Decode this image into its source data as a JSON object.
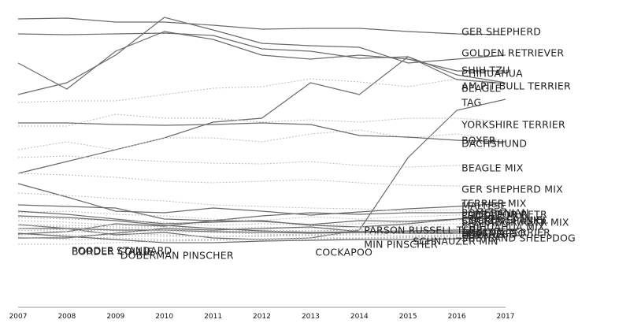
{
  "chart_data": {
    "type": "line",
    "title": "",
    "xlabel": "",
    "ylabel": "",
    "x": [
      2007,
      2008,
      2009,
      2010,
      2011,
      2012,
      2013,
      2014,
      2015,
      2016,
      2017
    ],
    "ylim": [
      0,
      380
    ],
    "grid": false,
    "legend": "none",
    "colors": {
      "solid": "#6a6a6a",
      "dotted": "#bdbdbd",
      "axis": "#9a9a9a",
      "text": "#222222"
    },
    "series": [
      {
        "name": "GER SHEPHERD",
        "style": "solid",
        "values": [
          366,
          367,
          362,
          362,
          358,
          353,
          354,
          354,
          350,
          347,
          346
        ]
      },
      {
        "name": "GOLDEN RETRIEVER",
        "style": "solid",
        "values": [
          270,
          285,
          320,
          368,
          352,
          335,
          332,
          330,
          310,
          315,
          320
        ]
      },
      {
        "name": "SHIH TZU",
        "style": "solid",
        "values": [
          347,
          346,
          347,
          348,
          345,
          328,
          325,
          316,
          318,
          289,
          284
        ]
      },
      {
        "name": "CHIHUAHUA",
        "style": "solid",
        "values": [
          310,
          277,
          325,
          350,
          340,
          320,
          315,
          320,
          315,
          300,
          300
        ]
      },
      {
        "name": "AM PIT BULL TERRIER",
        "style": "solid",
        "values": [
          170,
          185,
          200,
          215,
          235,
          240,
          285,
          270,
          318,
          295,
          285
        ]
      },
      {
        "name": "BEAGLE",
        "style": "dotted",
        "values": [
          260,
          262,
          262,
          270,
          278,
          280,
          290,
          286,
          280,
          290,
          285
        ]
      },
      {
        "name": "TAG",
        "style": "solid",
        "values": [
          105,
          100,
          92,
          95,
          88,
          86,
          88,
          98,
          190,
          250,
          264
        ]
      },
      {
        "name": "YORKSHIRE TERRIER",
        "style": "dotted",
        "values": [
          230,
          230,
          245,
          240,
          240,
          235,
          238,
          235,
          240,
          240,
          236
        ]
      },
      {
        "name": "BOXER",
        "style": "dotted",
        "values": [
          200,
          210,
          200,
          215,
          215,
          210,
          220,
          225,
          215,
          220,
          212
        ]
      },
      {
        "name": "DACHSHUND",
        "style": "solid",
        "values": [
          234,
          234,
          232,
          231,
          232,
          234,
          232,
          218,
          216,
          212,
          210
        ]
      },
      {
        "name": "BEAGLE MIX",
        "style": "dotted",
        "values": [
          190,
          192,
          188,
          185,
          183,
          182,
          185,
          180,
          178,
          180,
          180
        ]
      },
      {
        "name": "GER SHEPHERD MIX",
        "style": "dotted",
        "values": [
          170,
          168,
          165,
          160,
          158,
          160,
          162,
          158,
          155,
          154,
          152
        ]
      },
      {
        "name": "TERRIER MIX",
        "style": "solid",
        "values": [
          157,
          140,
          122,
          120,
          126,
          122,
          117,
          121,
          125,
          128,
          132
        ]
      },
      {
        "name": "MALTESE",
        "style": "dotted",
        "values": [
          145,
          142,
          138,
          135,
          130,
          128,
          126,
          125,
          122,
          124,
          127
        ]
      },
      {
        "name": "POMERANIAN",
        "style": "solid",
        "values": [
          130,
          128,
          126,
          112,
          110,
          116,
          120,
          118,
          120,
          120,
          123
        ]
      },
      {
        "name": "LABRADOR RETR",
        "style": "dotted",
        "values": [
          120,
          122,
          118,
          116,
          112,
          110,
          115,
          112,
          115,
          117,
          121
        ]
      },
      {
        "name": "POODLE MIX",
        "style": "solid",
        "values": [
          122,
          118,
          112,
          106,
          108,
          110,
          104,
          102,
          106,
          112,
          118
        ]
      },
      {
        "name": "COCKER SPANIEL",
        "style": "dotted",
        "values": [
          114,
          112,
          110,
          108,
          104,
          106,
          104,
          106,
          108,
          110,
          115
        ]
      },
      {
        "name": "SIBERIAN HUSKY",
        "style": "solid",
        "values": [
          93,
          96,
          106,
          103,
          110,
          109,
          105,
          110,
          109,
          112,
          113
        ]
      },
      {
        "name": "LABRADOR RETR MIX",
        "style": "dotted",
        "values": [
          110,
          108,
          104,
          102,
          100,
          102,
          100,
          102,
          104,
          106,
          108
        ]
      },
      {
        "name": "CHIHUAHUA MIX",
        "style": "dotted",
        "values": [
          105,
          104,
          102,
          100,
          96,
          98,
          97,
          99,
          100,
          100,
          104
        ]
      },
      {
        "name": "SCHNAUZER MIN",
        "style": "solid",
        "values": [
          116,
          114,
          110,
          104,
          100,
          97,
          95,
          96,
          97,
          98,
          100
        ]
      },
      {
        "name": "BOSTON TERRIER",
        "style": "solid",
        "values": [
          100,
          100,
          98,
          98,
          96,
          95,
          94,
          95,
          96,
          96,
          98
        ]
      },
      {
        "name": "LHASA APSO",
        "style": "dotted",
        "values": [
          98,
          96,
          94,
          92,
          90,
          90,
          91,
          92,
          94,
          95,
          97
        ]
      },
      {
        "name": "HAVANESE",
        "style": "dotted",
        "values": [
          92,
          92,
          91,
          90,
          90,
          91,
          92,
          94,
          95,
          95,
          96
        ]
      },
      {
        "name": "SHETLAND SHEEPDOG",
        "style": "dotted",
        "values": [
          88,
          89,
          88,
          86,
          86,
          87,
          88,
          88,
          89,
          90,
          92
        ]
      },
      {
        "name": "POODLE STANDARD",
        "style": "solid",
        "values": [
          88,
          88,
          94,
          100,
          98,
          100,
          102,
          96,
          94,
          94,
          93
        ]
      },
      {
        "name": "BORDER COLLIE",
        "style": "dotted",
        "values": [
          89,
          86,
          86,
          84,
          85,
          86,
          86,
          87,
          88,
          88,
          90
        ]
      },
      {
        "name": "DOBERMAN PINSCHER",
        "style": "solid",
        "values": [
          94,
          90,
          86,
          82,
          82,
          84,
          85,
          86,
          86,
          87,
          89
        ]
      },
      {
        "name": "PARSON RUSSELL TERR",
        "style": "dotted",
        "values": [
          104,
          102,
          100,
          98,
          97,
          96,
          97,
          98,
          96,
          95,
          94
        ]
      },
      {
        "name": "COCKAPOO",
        "style": "dotted",
        "values": [
          80,
          80,
          82,
          84,
          86,
          87,
          86,
          88,
          90,
          91,
          92
        ]
      },
      {
        "name": "MIN PINSCHER",
        "style": "dotted",
        "values": [
          100,
          98,
          97,
          96,
          95,
          93,
          92,
          92,
          91,
          92,
          93
        ]
      }
    ],
    "labels": [
      {
        "text": "GER SHEPHERD",
        "year": 2016,
        "value": 350
      },
      {
        "text": "GOLDEN RETRIEVER",
        "year": 2016,
        "value": 323
      },
      {
        "text": "SHIH TZU",
        "year": 2016,
        "value": 301
      },
      {
        "text": "CHIHUAHUA",
        "year": 2016,
        "value": 297
      },
      {
        "text": "AM PIT BULL TERRIER",
        "year": 2016,
        "value": 281
      },
      {
        "text": "BEAGLE",
        "year": 2016,
        "value": 278
      },
      {
        "text": "TAG",
        "year": 2016,
        "value": 260
      },
      {
        "text": "YORKSHIRE TERRIER",
        "year": 2016,
        "value": 232
      },
      {
        "text": "BOXER",
        "year": 2016,
        "value": 212
      },
      {
        "text": "DACHSHUND",
        "year": 2016,
        "value": 208
      },
      {
        "text": "BEAGLE MIX",
        "year": 2016,
        "value": 177
      },
      {
        "text": "GER SHEPHERD MIX",
        "year": 2016,
        "value": 150
      },
      {
        "text": "TERRIER MIX",
        "year": 2016,
        "value": 132
      },
      {
        "text": "MALTESE",
        "year": 2016,
        "value": 129
      },
      {
        "text": "POMERANIAN",
        "year": 2016,
        "value": 120
      },
      {
        "text": "LABRADOR RETR",
        "year": 2016,
        "value": 118
      },
      {
        "text": "POODLE MIX",
        "year": 2016,
        "value": 117
      },
      {
        "text": "COCKER SPANIEL",
        "year": 2016,
        "value": 111
      },
      {
        "text": "SIBERIAN HUSKY",
        "year": 2016,
        "value": 110
      },
      {
        "text": "LABRADOR RETR MIX",
        "year": 2016,
        "value": 108
      },
      {
        "text": "CHIHUAHUA MIX",
        "year": 2016,
        "value": 102
      },
      {
        "text": "BOSTON TERRIER",
        "year": 2016,
        "value": 95
      },
      {
        "text": "LHASA APSO",
        "year": 2016,
        "value": 94
      },
      {
        "text": "HAVANESE",
        "year": 2016,
        "value": 93
      },
      {
        "text": "SHETLAND SHEEPDOG",
        "year": 2016,
        "value": 88
      },
      {
        "text": "PARSON RUSSELL TERR",
        "year": 2014,
        "value": 98
      },
      {
        "text": "MIN PINSCHER",
        "year": 2014,
        "value": 80
      },
      {
        "text": "SCHNAUZER MIN",
        "year": 2015,
        "value": 84
      },
      {
        "text": "POODLE STANDARD",
        "year": 2008,
        "value": 72
      },
      {
        "text": "BORDER COLLIE",
        "year": 2008,
        "value": 71
      },
      {
        "text": "DOBERMAN PINSCHER",
        "year": 2009,
        "value": 66
      },
      {
        "text": "COCKAPOO",
        "year": 2013,
        "value": 70
      }
    ]
  }
}
